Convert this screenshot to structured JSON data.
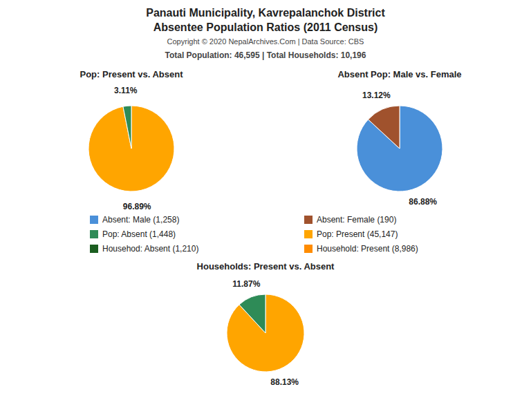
{
  "title": "Panauti Municipality, Kavrepalanchok District",
  "subtitle": "Absentee Population Ratios (2011 Census)",
  "annotations": [
    "Copyright © 2020 NepalArchives.Com | Data Source: CBS",
    "Total Population: 46,595 | Total Households: 10,196"
  ],
  "chart_data": [
    {
      "type": "pie",
      "title": "Pop: Present vs. Absent",
      "values": [
        96.89,
        3.11
      ],
      "value_labels": [
        "96.89%",
        "3.11%"
      ],
      "colors": [
        "#FFA500",
        "#2E8B57"
      ],
      "data_labels": true
    },
    {
      "type": "pie",
      "title": "Absent Pop: Male vs. Female",
      "values": [
        86.88,
        13.12
      ],
      "value_labels": [
        "86.88%",
        "13.12%"
      ],
      "colors": [
        "#4A90D9",
        "#A0522D"
      ],
      "data_labels": true
    },
    {
      "type": "pie",
      "title": "Households: Present vs. Absent",
      "values": [
        88.13,
        11.87
      ],
      "value_labels": [
        "88.13%",
        "11.87%"
      ],
      "colors": [
        "#FFA500",
        "#2E8B57"
      ],
      "data_labels": true
    },
    {
      "type": "legend",
      "categories": [
        "Absent: Male (1,258)",
        "Absent: Female (190)",
        "Pop: Absent (1,448)",
        "Pop: Present (45,147)",
        "Househod: Absent (1,210)",
        "Household: Present (8,986)"
      ],
      "colors": [
        "#4A90D9",
        "#A0522D",
        "#2E8B57",
        "#FFA500",
        "#1B5E20",
        "#FF8C00"
      ]
    }
  ]
}
